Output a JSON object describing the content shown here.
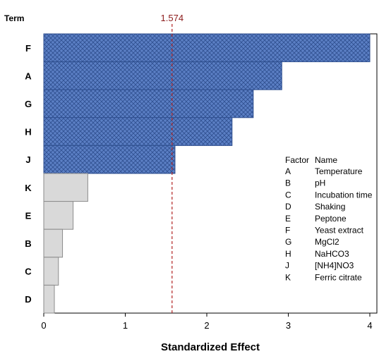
{
  "chart_data": {
    "type": "bar",
    "orientation": "horizontal",
    "y_title": "Term",
    "xlabel": "Standardized Effect",
    "xlim": [
      0,
      4
    ],
    "x_ticks": [
      "0",
      "1",
      "2",
      "3",
      "4"
    ],
    "reference_line": {
      "value": 1.574,
      "label": "1.574",
      "color": "#b22222"
    },
    "categories": [
      "F",
      "A",
      "G",
      "H",
      "J",
      "K",
      "E",
      "B",
      "C",
      "D"
    ],
    "values": [
      4.0,
      2.92,
      2.57,
      2.31,
      1.61,
      0.54,
      0.36,
      0.23,
      0.18,
      0.13
    ],
    "colors": {
      "significant": "#4f81bd",
      "not_significant": "#d9d9d9"
    },
    "legend": {
      "header": {
        "factor": "Factor",
        "name": "Name"
      },
      "entries": [
        {
          "factor": "A",
          "name": "Temperature"
        },
        {
          "factor": "B",
          "name": "pH"
        },
        {
          "factor": "C",
          "name": "Incubation time"
        },
        {
          "factor": "D",
          "name": "Shaking"
        },
        {
          "factor": "E",
          "name": "Peptone"
        },
        {
          "factor": "F",
          "name": "Yeast extract"
        },
        {
          "factor": "G",
          "name": "MgCl2"
        },
        {
          "factor": "H",
          "name": "NaHCO3"
        },
        {
          "factor": "J",
          "name": "[NH4]NO3"
        },
        {
          "factor": "K",
          "name": "Ferric citrate"
        }
      ]
    }
  }
}
